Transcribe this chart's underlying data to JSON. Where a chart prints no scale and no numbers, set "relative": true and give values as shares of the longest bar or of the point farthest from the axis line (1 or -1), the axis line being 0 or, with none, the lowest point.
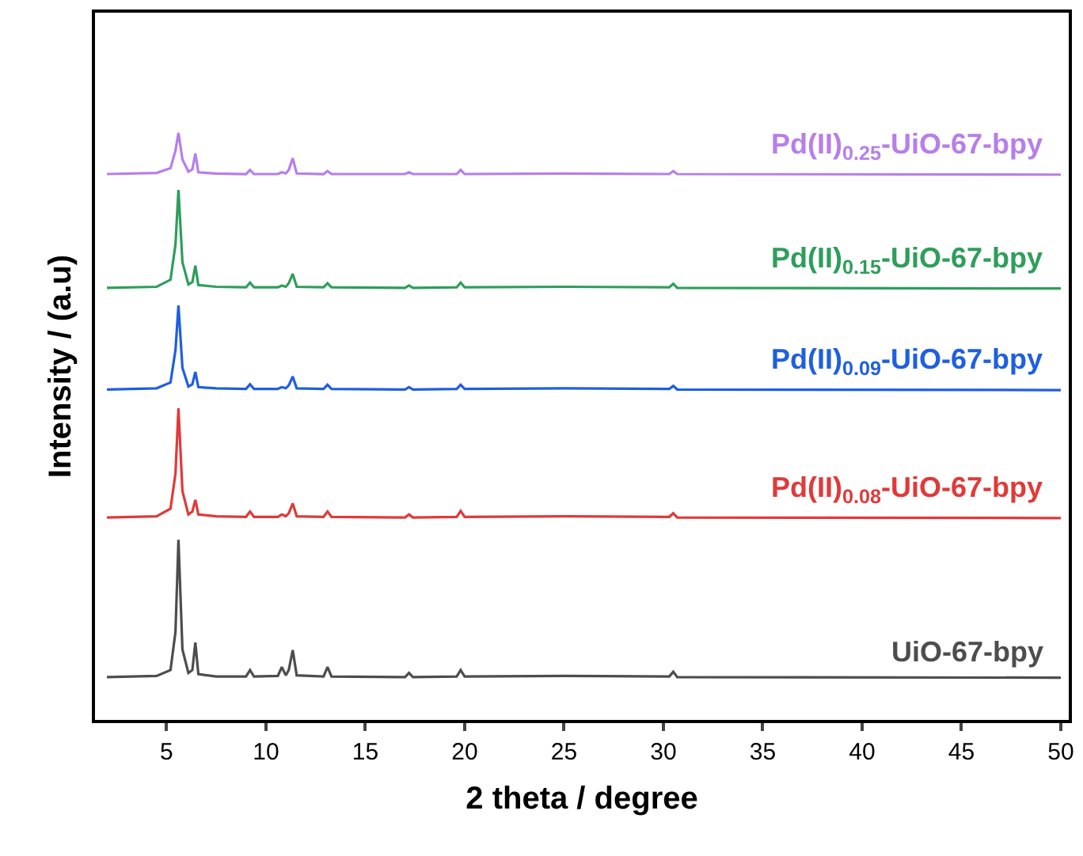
{
  "chart_data": {
    "type": "line",
    "xlabel": "2 theta / degree",
    "ylabel": "Intensity / (a.u)",
    "relative": true,
    "legend": false,
    "marker": "none",
    "line_style": "solid",
    "xlim": [
      1.4,
      50.4
    ],
    "xticks": [
      5,
      10,
      15,
      20,
      25,
      30,
      35,
      40,
      45,
      50
    ],
    "x": [
      2,
      4.5,
      5.2,
      5.45,
      5.6,
      5.8,
      6.1,
      6.3,
      6.45,
      6.6,
      7.5,
      9.0,
      9.2,
      9.4,
      10.6,
      10.8,
      11.0,
      11.15,
      11.35,
      11.55,
      12.9,
      13.1,
      13.3,
      17.0,
      17.2,
      17.4,
      19.6,
      19.8,
      20.0,
      25.0,
      30.3,
      30.5,
      30.7,
      50
    ],
    "series": [
      {
        "name": "Pd(II)$_{0.25}$-UiO-67-bpy",
        "color": "#b77fe8",
        "values": [
          0.93,
          0.932,
          0.94,
          0.97,
          1.0,
          0.955,
          0.934,
          0.938,
          0.965,
          0.933,
          0.931,
          0.93,
          0.937,
          0.93,
          0.93,
          0.933,
          0.931,
          0.937,
          0.957,
          0.931,
          0.93,
          0.935,
          0.93,
          0.93,
          0.933,
          0.93,
          0.93,
          0.937,
          0.93,
          0.931,
          0.93,
          0.935,
          0.93,
          0.929
        ]
      },
      {
        "name": "Pd(II)$_{0.15}$-UiO-67-bpy",
        "color": "#2e9e5b",
        "values": [
          0.736,
          0.738,
          0.75,
          0.81,
          0.903,
          0.78,
          0.742,
          0.746,
          0.774,
          0.741,
          0.738,
          0.737,
          0.745,
          0.737,
          0.737,
          0.74,
          0.738,
          0.744,
          0.76,
          0.738,
          0.737,
          0.744,
          0.737,
          0.736,
          0.74,
          0.736,
          0.737,
          0.745,
          0.737,
          0.738,
          0.737,
          0.743,
          0.736,
          0.735
        ]
      },
      {
        "name": "Pd(II)$_{0.09}$-UiO-67-bpy",
        "color": "#1f5fe0",
        "values": [
          0.563,
          0.565,
          0.575,
          0.63,
          0.706,
          0.6,
          0.568,
          0.572,
          0.593,
          0.567,
          0.565,
          0.564,
          0.572,
          0.564,
          0.564,
          0.567,
          0.565,
          0.57,
          0.585,
          0.565,
          0.564,
          0.571,
          0.564,
          0.563,
          0.567,
          0.563,
          0.564,
          0.571,
          0.564,
          0.565,
          0.564,
          0.569,
          0.563,
          0.562
        ]
      },
      {
        "name": "Pd(II)$_{0.08}$-UiO-67-bpy",
        "color": "#e03a3a",
        "values": [
          0.345,
          0.347,
          0.36,
          0.42,
          0.531,
          0.39,
          0.35,
          0.355,
          0.375,
          0.35,
          0.347,
          0.346,
          0.355,
          0.346,
          0.346,
          0.35,
          0.347,
          0.352,
          0.369,
          0.347,
          0.346,
          0.355,
          0.346,
          0.345,
          0.35,
          0.345,
          0.346,
          0.356,
          0.346,
          0.347,
          0.346,
          0.352,
          0.345,
          0.344
        ]
      },
      {
        "name": "UiO-67-bpy",
        "color": "#4d4d4d",
        "values": [
          0.073,
          0.075,
          0.085,
          0.15,
          0.307,
          0.12,
          0.08,
          0.085,
          0.132,
          0.078,
          0.074,
          0.074,
          0.085,
          0.074,
          0.075,
          0.09,
          0.076,
          0.085,
          0.119,
          0.076,
          0.074,
          0.09,
          0.074,
          0.073,
          0.08,
          0.073,
          0.074,
          0.085,
          0.074,
          0.075,
          0.074,
          0.082,
          0.073,
          0.072
        ]
      }
    ]
  }
}
